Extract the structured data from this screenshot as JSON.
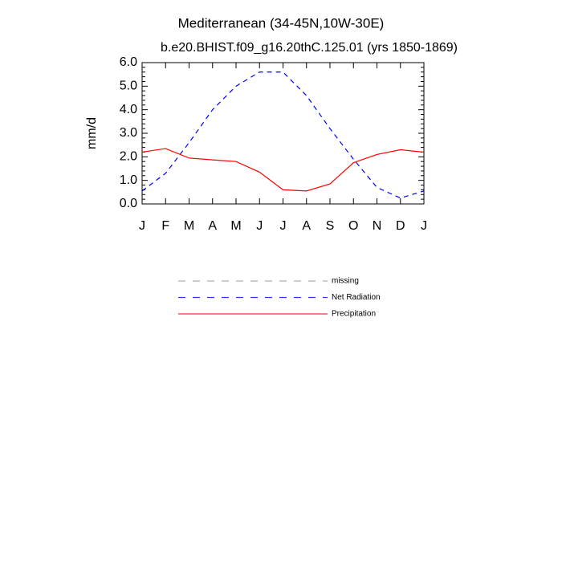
{
  "chart_data": {
    "type": "line",
    "title": "Mediterranean (34-45N,10W-30E)",
    "subtitle": "b.e20.BHIST.f09_g16.20thC.125.01 (yrs 1850-1869)",
    "y_label": "mm/d",
    "categories": [
      "J",
      "F",
      "M",
      "A",
      "M",
      "J",
      "J",
      "A",
      "S",
      "O",
      "N",
      "D",
      "J"
    ],
    "series": [
      {
        "name": "missing",
        "color": "#999999",
        "dash": true,
        "values": [
          null,
          null,
          null,
          null,
          null,
          null,
          null,
          null,
          null,
          null,
          null,
          null,
          null
        ]
      },
      {
        "name": "Net Radiation",
        "color": "#0000ff",
        "dash": true,
        "values": [
          0.55,
          1.3,
          2.6,
          4.0,
          5.0,
          5.6,
          5.6,
          4.6,
          3.2,
          1.9,
          0.7,
          0.25,
          0.55
        ]
      },
      {
        "name": "Precipitation",
        "color": "#ff0000",
        "dash": false,
        "values": [
          2.2,
          2.35,
          1.95,
          1.87,
          1.8,
          1.35,
          0.6,
          0.55,
          0.85,
          1.75,
          2.1,
          2.3,
          2.2
        ]
      }
    ],
    "ylim": [
      0,
      6
    ],
    "yticks": [
      {
        "value": 0,
        "label": "0.0"
      },
      {
        "value": 1,
        "label": "1.0"
      },
      {
        "value": 2,
        "label": "2.0"
      },
      {
        "value": 3,
        "label": "3.0"
      },
      {
        "value": 4,
        "label": "4.0"
      },
      {
        "value": 5,
        "label": "5.0"
      },
      {
        "value": 6,
        "label": "6.0"
      }
    ],
    "grid": false
  }
}
